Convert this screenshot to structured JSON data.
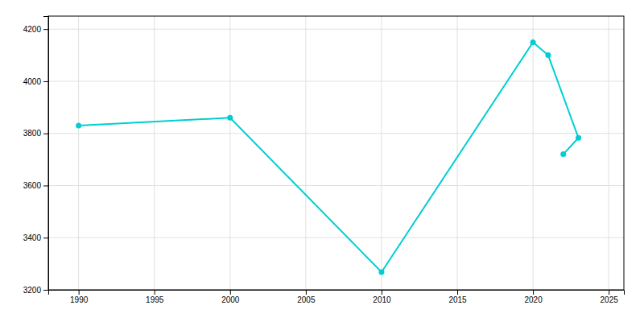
{
  "chart_data": {
    "type": "line",
    "x": [
      1990,
      2000,
      2010,
      2020,
      2021,
      2023,
      2022
    ],
    "values": [
      3830,
      3860,
      3268,
      4150,
      4100,
      3783,
      3720
    ],
    "color": "#00CED1",
    "marker": "circle",
    "xlim": [
      1988,
      2026
    ],
    "ylim": [
      3200,
      4250
    ],
    "xticks": [
      1990,
      1995,
      2000,
      2005,
      2010,
      2015,
      2020,
      2025
    ],
    "yticks": [
      3200,
      3400,
      3600,
      3800,
      4000,
      4200
    ],
    "grid": true
  }
}
